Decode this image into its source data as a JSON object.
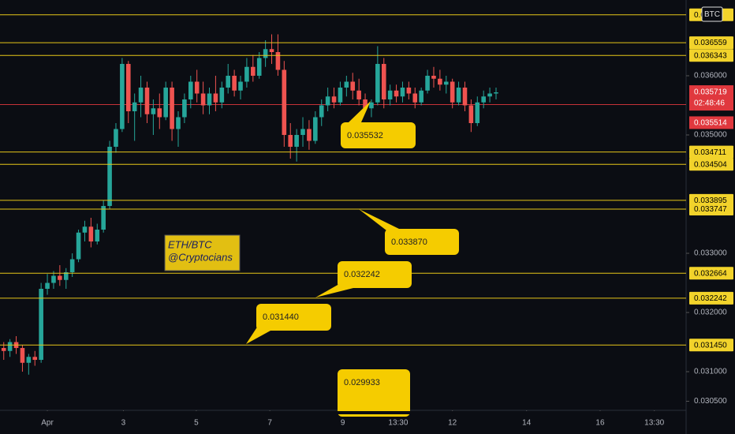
{
  "chart_data": {
    "type": "candlestick",
    "up_color": "#26a69a",
    "down_color": "#ef5350",
    "level_color": "#e6c619",
    "price_color": "#e0383e",
    "open": [
      0.0314,
      0.03135,
      0.0315,
      0.0314,
      0.03115,
      0.03125,
      0.0312,
      0.0324,
      0.0325,
      0.03262,
      0.03255,
      0.03268,
      0.0329,
      0.03335,
      0.03345,
      0.0332,
      0.0334,
      0.0338,
      0.0348,
      0.0351,
      0.0362,
      0.0354,
      0.03555,
      0.0358,
      0.03535,
      0.03545,
      0.0353,
      0.0358,
      0.0351,
      0.0353,
      0.0356,
      0.0359,
      0.0357,
      0.0355,
      0.0357,
      0.03555,
      0.0358,
      0.036,
      0.03575,
      0.0359,
      0.03615,
      0.036,
      0.0363,
      0.03645,
      0.0364,
      0.0361,
      0.035,
      0.0348,
      0.035,
      0.0351,
      0.0349,
      0.0353,
      0.0355,
      0.03565,
      0.03555,
      0.0358,
      0.0359,
      0.03575,
      0.0356,
      0.03545,
      0.03555,
      0.0362,
      0.0356,
      0.03575,
      0.03565,
      0.0358,
      0.0357,
      0.03555,
      0.03575,
      0.036,
      0.03595,
      0.03585,
      0.0359,
      0.03555,
      0.0358,
      0.0355,
      0.0352,
      0.03555,
      0.03565,
      0.0357
    ],
    "high": [
      0.0315,
      0.03155,
      0.0316,
      0.03145,
      0.0313,
      0.03135,
      0.0325,
      0.03265,
      0.0327,
      0.0328,
      0.03275,
      0.033,
      0.0334,
      0.03355,
      0.0336,
      0.0335,
      0.0339,
      0.0349,
      0.0352,
      0.0363,
      0.03625,
      0.0357,
      0.036,
      0.0359,
      0.0356,
      0.0357,
      0.0359,
      0.0359,
      0.0354,
      0.0357,
      0.036,
      0.0361,
      0.0359,
      0.0358,
      0.036,
      0.0359,
      0.0362,
      0.0361,
      0.036,
      0.0363,
      0.03635,
      0.0364,
      0.0366,
      0.0367,
      0.0367,
      0.03625,
      0.0352,
      0.0351,
      0.0353,
      0.03525,
      0.0354,
      0.0356,
      0.0358,
      0.0358,
      0.0359,
      0.036,
      0.03605,
      0.03595,
      0.0357,
      0.0356,
      0.0365,
      0.0363,
      0.03585,
      0.03585,
      0.0359,
      0.0359,
      0.0358,
      0.0358,
      0.0361,
      0.03615,
      0.0361,
      0.036,
      0.03595,
      0.0359,
      0.0359,
      0.0356,
      0.03565,
      0.03575,
      0.0358,
      0.0358
    ],
    "low": [
      0.0312,
      0.03125,
      0.0313,
      0.031,
      0.03095,
      0.0311,
      0.03115,
      0.0323,
      0.0324,
      0.03245,
      0.0324,
      0.0326,
      0.03285,
      0.0332,
      0.0331,
      0.03315,
      0.03335,
      0.03375,
      0.0347,
      0.03505,
      0.0352,
      0.0349,
      0.0353,
      0.0352,
      0.035,
      0.0351,
      0.03525,
      0.0349,
      0.0348,
      0.0352,
      0.03545,
      0.03555,
      0.03535,
      0.03535,
      0.0354,
      0.03545,
      0.0357,
      0.03565,
      0.0356,
      0.0358,
      0.0359,
      0.03595,
      0.03615,
      0.0362,
      0.036,
      0.0348,
      0.0346,
      0.03455,
      0.0348,
      0.03475,
      0.03485,
      0.03515,
      0.0354,
      0.03545,
      0.0355,
      0.03565,
      0.0356,
      0.0355,
      0.0354,
      0.0353,
      0.0355,
      0.03545,
      0.0355,
      0.03555,
      0.03555,
      0.0356,
      0.03545,
      0.0355,
      0.0357,
      0.0358,
      0.03575,
      0.0357,
      0.03545,
      0.0355,
      0.0354,
      0.03505,
      0.03515,
      0.03545,
      0.03555,
      0.0356
    ],
    "close": [
      0.03135,
      0.0315,
      0.0314,
      0.03115,
      0.03125,
      0.0312,
      0.0324,
      0.0325,
      0.03262,
      0.03255,
      0.03268,
      0.0329,
      0.03335,
      0.03345,
      0.0332,
      0.0334,
      0.0338,
      0.0348,
      0.0351,
      0.0362,
      0.0354,
      0.03555,
      0.0358,
      0.03535,
      0.03545,
      0.0353,
      0.0358,
      0.0351,
      0.0353,
      0.0356,
      0.0359,
      0.0357,
      0.0355,
      0.0357,
      0.03555,
      0.0358,
      0.036,
      0.03575,
      0.0359,
      0.03615,
      0.036,
      0.0363,
      0.03645,
      0.0364,
      0.0361,
      0.035,
      0.0348,
      0.035,
      0.0351,
      0.0349,
      0.0353,
      0.0355,
      0.03565,
      0.03555,
      0.0358,
      0.0359,
      0.03575,
      0.0356,
      0.03545,
      0.03555,
      0.0362,
      0.0356,
      0.03575,
      0.03565,
      0.0358,
      0.0357,
      0.03555,
      0.03575,
      0.036,
      0.03595,
      0.03585,
      0.0359,
      0.03555,
      0.0358,
      0.0355,
      0.0352,
      0.03555,
      0.03565,
      0.0357,
      0.03572
    ],
    "xlim": [
      -0.6,
      109.5
    ],
    "xticks": [
      {
        "value": 7,
        "label": "Apr"
      },
      {
        "value": 19.2,
        "label": "3"
      },
      {
        "value": 30.9,
        "label": "5"
      },
      {
        "value": 42.7,
        "label": "7"
      },
      {
        "value": 54.4,
        "label": "9"
      },
      {
        "value": 63.3,
        "label": "13:30"
      },
      {
        "value": 72,
        "label": "12"
      },
      {
        "value": 83.9,
        "label": "14"
      },
      {
        "value": 95.7,
        "label": "16"
      },
      {
        "value": 104.4,
        "label": "13:30"
      }
    ],
    "ylim": [
      0.030347,
      0.03728
    ],
    "yticks": [
      {
        "value": 0.0305,
        "label": "0.030500"
      },
      {
        "value": 0.031,
        "label": "0.031000"
      },
      {
        "value": 0.032,
        "label": "0.032000"
      },
      {
        "value": 0.033,
        "label": "0.033000"
      },
      {
        "value": 0.035,
        "label": "0.035000"
      },
      {
        "value": 0.036,
        "label": "0.036000"
      }
    ],
    "levels": [
      0.03703,
      0.036559,
      0.036343,
      0.034711,
      0.034504,
      0.033895,
      0.033747,
      0.032664,
      0.032242,
      {
        "value": 0.03145,
        "label": "0.031450"
      }
    ],
    "last_price": 0.035719,
    "countdown": "02:48:46",
    "marker_price": 0.035514,
    "symbol_badge": "BTC",
    "watermark": [
      "ETH/BTC",
      "@Cryptocians"
    ],
    "annotations": [
      "0.035532",
      "0.033870",
      "0.032242",
      "0.031440",
      "0.029933"
    ]
  }
}
